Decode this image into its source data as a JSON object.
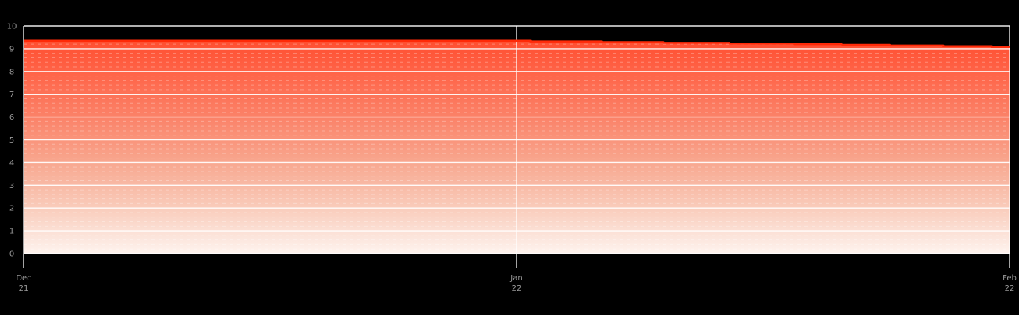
{
  "chart_data": {
    "type": "area",
    "title": "",
    "xlabel": "",
    "ylabel": "",
    "ylim": [
      0,
      10
    ],
    "y_ticks": [
      0,
      1,
      2,
      3,
      4,
      5,
      6,
      7,
      8,
      9,
      10
    ],
    "y_tick_labels": [
      "0",
      "1",
      "2",
      "3",
      "4",
      "5",
      "6",
      "7",
      "8",
      "9",
      "10"
    ],
    "x_ticks": [
      {
        "line1": "Dec",
        "line2": "21",
        "pos": 0
      },
      {
        "line1": "Jan",
        "line2": "22",
        "pos": 0.5
      },
      {
        "line1": "Feb",
        "line2": "22",
        "pos": 1
      }
    ],
    "grid": {
      "major_step": 1,
      "minor_step": 0.2,
      "major_style": "solid",
      "minor_style": "dashed",
      "minor_clipped_to_area": true
    },
    "legend": "none",
    "series": [
      {
        "name": "value",
        "style": "step-after",
        "points": [
          {
            "p": 0.0,
            "v": 9.35
          },
          {
            "p": 0.514,
            "v": 9.32
          },
          {
            "p": 0.586,
            "v": 9.29
          },
          {
            "p": 0.649,
            "v": 9.26
          },
          {
            "p": 0.716,
            "v": 9.23
          },
          {
            "p": 0.782,
            "v": 9.2
          },
          {
            "p": 0.83,
            "v": 9.17
          },
          {
            "p": 0.879,
            "v": 9.14
          },
          {
            "p": 0.933,
            "v": 9.11
          },
          {
            "p": 0.982,
            "v": 9.08
          },
          {
            "p": 1.0,
            "v": 9.08
          }
        ],
        "value_at_dec21": 9.35,
        "value_at_jan22": 9.35,
        "value_at_feb22": 9.08
      }
    ],
    "colors": {
      "background": "#000000",
      "stroke": "#ff2a08",
      "gradient_stops": [
        [
          0.0,
          "#ff4425"
        ],
        [
          0.2,
          "#ff6347"
        ],
        [
          0.4,
          "#fb8268"
        ],
        [
          0.6,
          "#f8a78f"
        ],
        [
          0.8,
          "#f9ccbb"
        ],
        [
          1.0,
          "#fef3ee"
        ]
      ],
      "major_grid": "#ffffff",
      "minor_grid": "#ffffff",
      "axis_line": "#ffffff",
      "tick_label": "#9a9a9a"
    }
  }
}
